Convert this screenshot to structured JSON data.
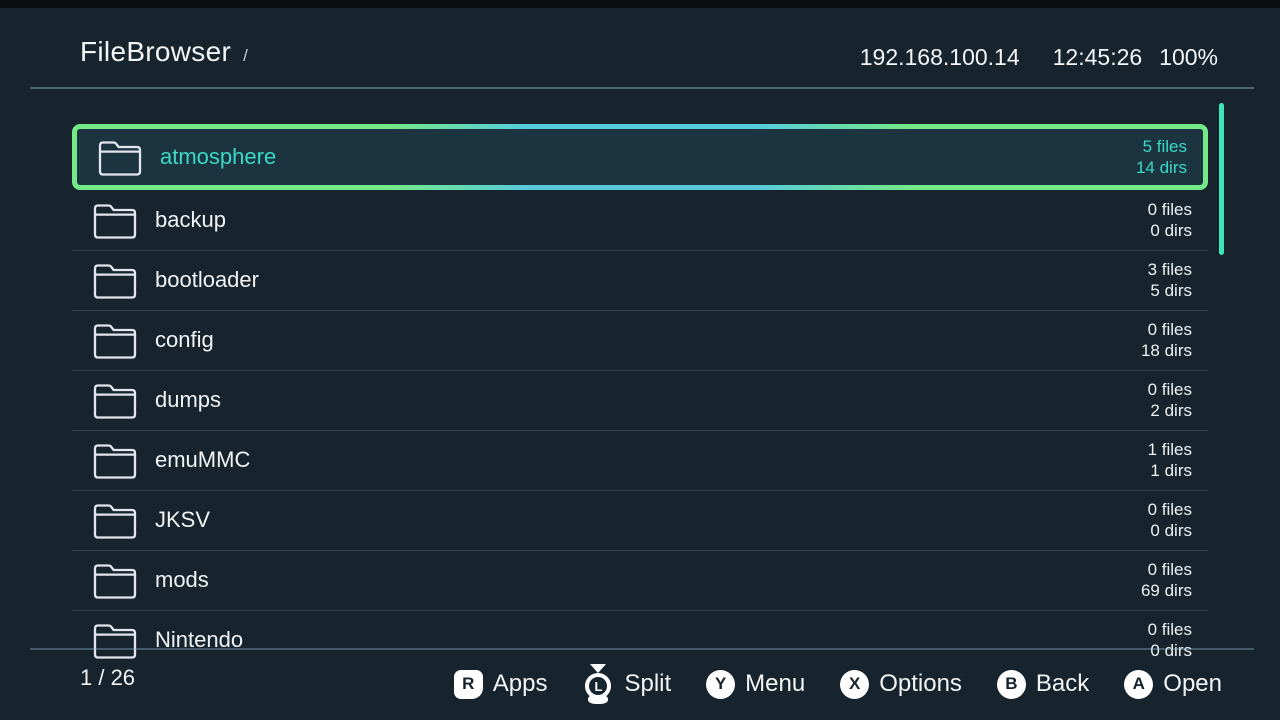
{
  "header": {
    "title": "FileBrowser",
    "path": "/",
    "ip": "192.168.100.14",
    "time": "12:45:26",
    "battery": "100%"
  },
  "list": {
    "items": [
      {
        "name": "atmosphere",
        "files": "5 files",
        "dirs": "14 dirs",
        "selected": true
      },
      {
        "name": "backup",
        "files": "0 files",
        "dirs": "0 dirs",
        "selected": false
      },
      {
        "name": "bootloader",
        "files": "3 files",
        "dirs": "5 dirs",
        "selected": false
      },
      {
        "name": "config",
        "files": "0 files",
        "dirs": "18 dirs",
        "selected": false
      },
      {
        "name": "dumps",
        "files": "0 files",
        "dirs": "2 dirs",
        "selected": false
      },
      {
        "name": "emuMMC",
        "files": "1 files",
        "dirs": "1 dirs",
        "selected": false
      },
      {
        "name": "JKSV",
        "files": "0 files",
        "dirs": "0 dirs",
        "selected": false
      },
      {
        "name": "mods",
        "files": "0 files",
        "dirs": "69 dirs",
        "selected": false
      },
      {
        "name": "Nintendo",
        "files": "0 files",
        "dirs": "0 dirs",
        "selected": false
      }
    ]
  },
  "footer": {
    "position": "1 / 26",
    "actions": [
      {
        "key": "R",
        "label": "Apps",
        "icon": "r-shoulder-button-icon",
        "type": "rkey"
      },
      {
        "key": "L",
        "label": "Split",
        "icon": "left-stick-press-icon",
        "type": "stick"
      },
      {
        "key": "Y",
        "label": "Menu",
        "icon": "y-button-icon",
        "type": "circle"
      },
      {
        "key": "X",
        "label": "Options",
        "icon": "x-button-icon",
        "type": "circle"
      },
      {
        "key": "B",
        "label": "Back",
        "icon": "b-button-icon",
        "type": "circle"
      },
      {
        "key": "A",
        "label": "Open",
        "icon": "a-button-icon",
        "type": "circle"
      }
    ]
  },
  "colors": {
    "background": "#17242e",
    "selected_row_bg": "#1c3440",
    "accent_teal_text": "#39d9c6",
    "selection_border_green": "#74e987",
    "selection_border_cyan": "#57cbdc",
    "scrollbar": "#3ee6b7",
    "text_white": "#f1f3f4"
  }
}
